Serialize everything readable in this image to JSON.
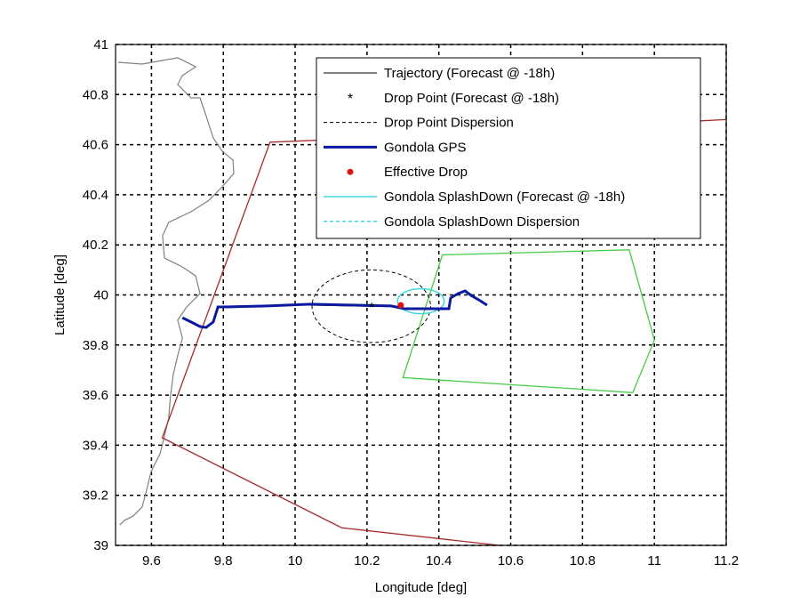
{
  "chart_data": {
    "type": "line",
    "xlabel": "Longitude [deg]",
    "ylabel": "Latitude [deg]",
    "xlim": [
      9.5,
      11.2
    ],
    "ylim": [
      39,
      41
    ],
    "grid": true,
    "xticks": [
      "9.6",
      "9.8",
      "10",
      "10.2",
      "10.4",
      "10.6",
      "10.8",
      "11",
      "11.2"
    ],
    "xtick_values": [
      9.6,
      9.8,
      10,
      10.2,
      10.4,
      10.6,
      10.8,
      11,
      11.2
    ],
    "yticks": [
      "39",
      "39.2",
      "39.4",
      "39.6",
      "39.8",
      "40",
      "40.2",
      "40.4",
      "40.6",
      "40.8",
      "41"
    ],
    "ytick_values": [
      39,
      39.2,
      39.4,
      39.6,
      39.8,
      40,
      40.2,
      40.4,
      40.6,
      40.8,
      41
    ],
    "legend_placement": "top-right",
    "legend": [
      "Trajectory (Forecast @ -18h)",
      "Drop Point (Forecast @ -18h)",
      "Drop Point Dispersion",
      "Gondola GPS",
      "Effective Drop",
      "Gondola SplashDown (Forecast @ -18h)",
      "Gondola SplashDown Dispersion"
    ],
    "colors": {
      "trajectory": "#000000",
      "gps": "#0a1aa0",
      "effective": "#e01010",
      "splash": "#40d8e0",
      "coast": "#808080",
      "zone_red": "#a52a2a",
      "zone_green": "#44cc44"
    },
    "coastline": [
      [
        9.507,
        40.929
      ],
      [
        9.574,
        40.922
      ],
      [
        9.673,
        40.947
      ],
      [
        9.723,
        40.911
      ],
      [
        9.686,
        40.876
      ],
      [
        9.673,
        40.84
      ],
      [
        9.71,
        40.787
      ],
      [
        9.735,
        40.787
      ],
      [
        9.752,
        40.716
      ],
      [
        9.772,
        40.627
      ],
      [
        9.797,
        40.574
      ],
      [
        9.827,
        40.538
      ],
      [
        9.829,
        40.485
      ],
      [
        9.797,
        40.432
      ],
      [
        9.76,
        40.378
      ],
      [
        9.71,
        40.332
      ],
      [
        9.648,
        40.29
      ],
      [
        9.631,
        40.236
      ],
      [
        9.636,
        40.147
      ],
      [
        9.686,
        40.112
      ],
      [
        9.723,
        40.076
      ],
      [
        9.735,
        40.005
      ],
      [
        9.698,
        39.952
      ],
      [
        9.673,
        39.899
      ],
      [
        9.686,
        39.828
      ],
      [
        9.673,
        39.757
      ],
      [
        9.661,
        39.686
      ],
      [
        9.653,
        39.597
      ],
      [
        9.648,
        39.508
      ],
      [
        9.636,
        39.437
      ],
      [
        9.624,
        39.366
      ],
      [
        9.599,
        39.295
      ],
      [
        9.587,
        39.224
      ],
      [
        9.574,
        39.153
      ],
      [
        9.549,
        39.117
      ],
      [
        9.525,
        39.1
      ],
      [
        9.512,
        39.082
      ]
    ],
    "red_zone": [
      [
        11.2,
        40.7
      ],
      [
        10.1,
        40.62
      ],
      [
        9.93,
        40.61
      ],
      [
        9.63,
        39.43
      ],
      [
        10.13,
        39.07
      ],
      [
        10.57,
        39.0
      ]
    ],
    "green_zone": [
      [
        10.41,
        40.16
      ],
      [
        10.93,
        40.18
      ],
      [
        11.0,
        39.82
      ],
      [
        10.94,
        39.61
      ],
      [
        10.3,
        39.67
      ],
      [
        10.41,
        40.16
      ]
    ],
    "trajectory": [
      [
        9.8,
        39.955
      ],
      [
        10.0,
        39.96
      ],
      [
        10.2,
        39.955
      ],
      [
        10.3,
        39.955
      ]
    ],
    "gps": [
      [
        9.686,
        39.909
      ],
      [
        9.71,
        39.892
      ],
      [
        9.735,
        39.874
      ],
      [
        9.752,
        39.87
      ],
      [
        9.772,
        39.892
      ],
      [
        9.785,
        39.952
      ],
      [
        9.802,
        39.952
      ],
      [
        9.921,
        39.956
      ],
      [
        10.044,
        39.963
      ],
      [
        10.168,
        39.959
      ],
      [
        10.267,
        39.956
      ],
      [
        10.304,
        39.945
      ],
      [
        10.341,
        39.945
      ],
      [
        10.428,
        39.945
      ],
      [
        10.433,
        39.988
      ],
      [
        10.453,
        40.005
      ],
      [
        10.473,
        40.016
      ],
      [
        10.49,
        39.998
      ],
      [
        10.515,
        39.977
      ],
      [
        10.534,
        39.959
      ]
    ],
    "drop_point": [
      10.213,
      39.952
    ],
    "drop_dispersion": {
      "center": [
        10.212,
        39.955
      ],
      "radius": [
        0.165,
        0.145
      ]
    },
    "effective_drop": [
      10.294,
      39.959
    ],
    "splash_dispersion": {
      "center": [
        10.35,
        39.975
      ],
      "radius": [
        0.065,
        0.05
      ]
    }
  }
}
